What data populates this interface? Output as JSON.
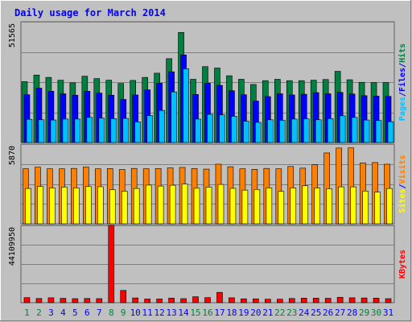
{
  "chart_data": {
    "type": "bar",
    "title": "Daily usage for March 2014",
    "categories": [
      "1",
      "2",
      "3",
      "4",
      "5",
      "6",
      "7",
      "8",
      "9",
      "10",
      "11",
      "12",
      "13",
      "14",
      "15",
      "16",
      "17",
      "18",
      "19",
      "20",
      "21",
      "22",
      "23",
      "24",
      "25",
      "26",
      "27",
      "28",
      "29",
      "30",
      "31"
    ],
    "weekend_days": [
      "1",
      "2",
      "8",
      "9",
      "15",
      "16",
      "22",
      "23",
      "29",
      "30"
    ],
    "panels": [
      {
        "id": "requests",
        "ylim": [
          0,
          51565
        ],
        "ymax_label": "51565",
        "legend": [
          "Pages",
          "/",
          "Files",
          "/",
          "Hits"
        ],
        "series": [
          {
            "name": "Hits",
            "color": "#008040",
            "values": [
              26000,
              28800,
              27800,
              26600,
              25500,
              28300,
              27300,
              26600,
              25200,
              26500,
              27800,
              29600,
              35800,
              47000,
              27000,
              32400,
              31800,
              28500,
              27000,
              24800,
              26400,
              27000,
              26400,
              26400,
              26600,
              26900,
              30400,
              26800,
              25700,
              25600,
              25600
            ]
          },
          {
            "name": "Files",
            "color": "#0000ff",
            "values": [
              20400,
              23200,
              21900,
              20800,
              20200,
              21900,
              21100,
              20200,
              18400,
              20300,
              22500,
              25300,
              30200,
              37400,
              20500,
              25300,
              24400,
              22100,
              20400,
              17700,
              19600,
              20800,
              20300,
              20600,
              21300,
              20800,
              21400,
              20700,
              20000,
              19800,
              19700
            ]
          },
          {
            "name": "Pages",
            "color": "#00c0ff",
            "values": [
              9900,
              9700,
              9600,
              10000,
              10000,
              10700,
              10400,
              10200,
              10300,
              8800,
              11500,
              13700,
              21600,
              31500,
              10000,
              12000,
              11800,
              11200,
              9100,
              8600,
              9700,
              9500,
              10000,
              10100,
              9700,
              10200,
              11400,
              10700,
              9600,
              9400,
              8900
            ]
          }
        ]
      },
      {
        "id": "visitors",
        "ylim": [
          0,
          5870
        ],
        "ymax_label": "5870",
        "legend": [
          "Sites",
          "/",
          "Visits"
        ],
        "series": [
          {
            "name": "Visits",
            "color": "#ff8000",
            "values": [
              4050,
              4170,
              4050,
              4050,
              4080,
              4180,
              4050,
              4070,
              4000,
              4080,
              4050,
              4070,
              4120,
              4150,
              4070,
              4030,
              4390,
              4200,
              4050,
              4010,
              4080,
              4050,
              4220,
              4100,
              4350,
              5220,
              5580,
              5590,
              4480,
              4510,
              4390
            ]
          },
          {
            "name": "Sites",
            "color": "#ffff00",
            "values": [
              2600,
              2750,
              2640,
              2700,
              2640,
              2740,
              2730,
              2510,
              2400,
              2600,
              2850,
              2780,
              2840,
              2930,
              2620,
              2700,
              2900,
              2610,
              2480,
              2530,
              2640,
              2390,
              2640,
              2800,
              2640,
              2580,
              2720,
              2720,
              2410,
              2330,
              2600
            ]
          }
        ]
      },
      {
        "id": "kbytes",
        "ylim": [
          0,
          44109950
        ],
        "ymax_label": "44109950",
        "legend": [
          "KBytes"
        ],
        "series": [
          {
            "name": "KBytes",
            "color": "#ff0000",
            "values": [
              2900000,
              2400000,
              2800000,
              2500000,
              2300000,
              2400000,
              2300000,
              44109950,
              7000000,
              2700000,
              2100000,
              2100000,
              2600000,
              2300000,
              3400000,
              2900000,
              5900000,
              2800000,
              2200000,
              2200000,
              2000000,
              2000000,
              2400000,
              2600000,
              2600000,
              2500000,
              3100000,
              2800000,
              2700000,
              2600000,
              2300000
            ]
          }
        ]
      }
    ],
    "colors": {
      "background": "#c0c0c0",
      "plot_background": "#c0c0c0",
      "title": "#0000ff",
      "weekday_label": "#0000ff",
      "weekend_label": "#008040",
      "separator": "#0000ff",
      "gridline": "#808080",
      "axis_text": "#000000"
    },
    "grid": true
  }
}
